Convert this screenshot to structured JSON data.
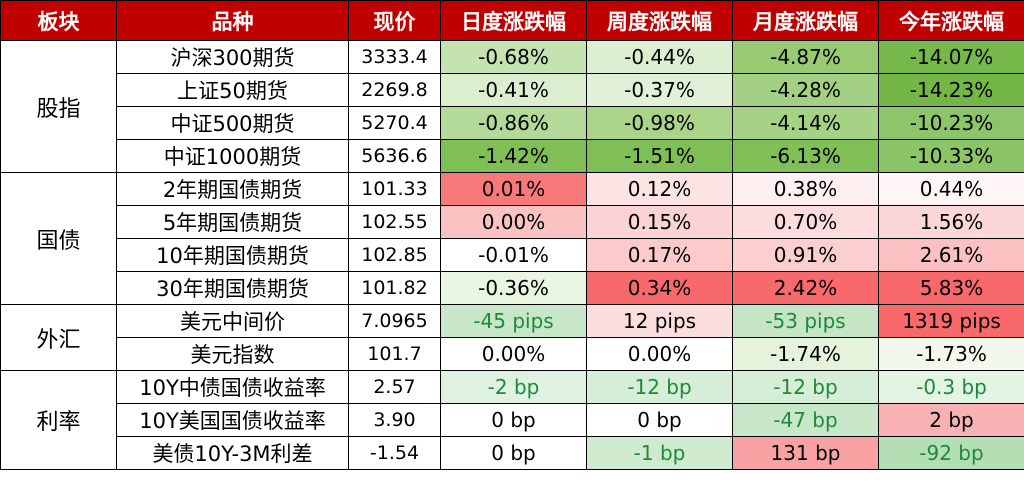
{
  "headers": [
    "板块",
    "品种",
    "现价",
    "日度涨跌幅",
    "周度涨跌幅",
    "月度涨跌幅",
    "今年涨跌幅"
  ],
  "sections": [
    {
      "name": "股指",
      "rows": [
        {
          "name": "沪深300期货",
          "price": "3333.4",
          "cells": [
            {
              "v": "-0.68%",
              "bg": "#c5e3b2"
            },
            {
              "v": "-0.44%",
              "bg": "#dcefd0"
            },
            {
              "v": "-4.87%",
              "bg": "#97ca72"
            },
            {
              "v": "-14.07%",
              "bg": "#76b84a"
            }
          ]
        },
        {
          "name": "上证50期货",
          "price": "2269.8",
          "cells": [
            {
              "v": "-0.41%",
              "bg": "#dbeecf"
            },
            {
              "v": "-0.37%",
              "bg": "#e1f1d7"
            },
            {
              "v": "-4.28%",
              "bg": "#a3d083"
            },
            {
              "v": "-14.23%",
              "bg": "#74b747"
            }
          ]
        },
        {
          "name": "中证500期货",
          "price": "5270.4",
          "cells": [
            {
              "v": "-0.86%",
              "bg": "#b3da98"
            },
            {
              "v": "-0.98%",
              "bg": "#aad589"
            },
            {
              "v": "-4.14%",
              "bg": "#a6d286"
            },
            {
              "v": "-10.23%",
              "bg": "#8cc56a"
            }
          ]
        },
        {
          "name": "中证1000期货",
          "price": "5636.6",
          "cells": [
            {
              "v": "-1.42%",
              "bg": "#7fbf55"
            },
            {
              "v": "-1.51%",
              "bg": "#7fbf55"
            },
            {
              "v": "-6.13%",
              "bg": "#7fbf55"
            },
            {
              "v": "-10.33%",
              "bg": "#8bc568"
            }
          ]
        }
      ]
    },
    {
      "name": "国债",
      "rows": [
        {
          "name": "2年期国债期货",
          "price": "101.33",
          "cells": [
            {
              "v": "0.01%",
              "bg": "#f8797a"
            },
            {
              "v": "0.12%",
              "bg": "#fde4e4"
            },
            {
              "v": "0.38%",
              "bg": "#fef0f0"
            },
            {
              "v": "0.44%",
              "bg": "#fef6f6"
            }
          ]
        },
        {
          "name": "5年期国债期货",
          "price": "102.55",
          "cells": [
            {
              "v": "0.00%",
              "bg": "#fbc2c3"
            },
            {
              "v": "0.15%",
              "bg": "#fcd3d4"
            },
            {
              "v": "0.70%",
              "bg": "#fcdcdc"
            },
            {
              "v": "1.56%",
              "bg": "#fcd7d7"
            }
          ]
        },
        {
          "name": "10年期国债期货",
          "price": "102.85",
          "cells": [
            {
              "v": "-0.01%",
              "bg": "#ffffff"
            },
            {
              "v": "0.17%",
              "bg": "#fccaca"
            },
            {
              "v": "0.91%",
              "bg": "#fbcfd0"
            },
            {
              "v": "2.61%",
              "bg": "#fbc0c1"
            }
          ]
        },
        {
          "name": "30年期国债期货",
          "price": "101.82",
          "cells": [
            {
              "v": "-0.36%",
              "bg": "#eaf6e2"
            },
            {
              "v": "0.34%",
              "bg": "#f8696b"
            },
            {
              "v": "2.42%",
              "bg": "#f8696b"
            },
            {
              "v": "5.83%",
              "bg": "#f8696b"
            }
          ]
        }
      ]
    },
    {
      "name": "外汇",
      "rows": [
        {
          "name": "美元中间价",
          "price": "7.0965",
          "cells": [
            {
              "v": "-45 pips",
              "bg": "#c8e7c9",
              "fg": "#1f8a3b"
            },
            {
              "v": "12 pips",
              "bg": "#fcdede"
            },
            {
              "v": "-53 pips",
              "bg": "#c6e5c7",
              "fg": "#1f8a3b"
            },
            {
              "v": "1319 pips",
              "bg": "#f8696b"
            }
          ]
        },
        {
          "name": "美元指数",
          "price": "101.7",
          "cells": [
            {
              "v": "0.00%",
              "bg": "#ffffff"
            },
            {
              "v": "0.00%",
              "bg": "#ffffff"
            },
            {
              "v": "-1.74%",
              "bg": "#e6f3dc"
            },
            {
              "v": "-1.73%",
              "bg": "#f2f8ee"
            }
          ]
        }
      ]
    },
    {
      "name": "利率",
      "rows": [
        {
          "name": "10Y中债国债收益率",
          "price": "2.57",
          "cells": [
            {
              "v": "-2 bp",
              "bg": "#dff1e0",
              "fg": "#1f8a3b"
            },
            {
              "v": "-12 bp",
              "bg": "#d6edd7",
              "fg": "#1f8a3b"
            },
            {
              "v": "-12 bp",
              "bg": "#d6edd7",
              "fg": "#1f8a3b"
            },
            {
              "v": "-0.3 bp",
              "bg": "#e3f3e4",
              "fg": "#1f8a3b"
            }
          ]
        },
        {
          "name": "10Y美国国债收益率",
          "price": "3.90",
          "cells": [
            {
              "v": "0 bp",
              "bg": "#ffffff"
            },
            {
              "v": "0 bp",
              "bg": "#ffffff"
            },
            {
              "v": "-47 bp",
              "bg": "#c8e7c9",
              "fg": "#1f8a3b"
            },
            {
              "v": "2 bp",
              "bg": "#f9b2b3"
            }
          ]
        },
        {
          "name": "美债10Y-3M利差",
          "price": "-1.54",
          "cells": [
            {
              "v": "0 bp",
              "bg": "#ffffff"
            },
            {
              "v": "-1 bp",
              "bg": "#cfeacf",
              "fg": "#1f8a3b"
            },
            {
              "v": "131 bp",
              "bg": "#f8a2a3"
            },
            {
              "v": "-92 bp",
              "bg": "#b4dfb5",
              "fg": "#1f8a3b"
            }
          ]
        }
      ]
    }
  ]
}
